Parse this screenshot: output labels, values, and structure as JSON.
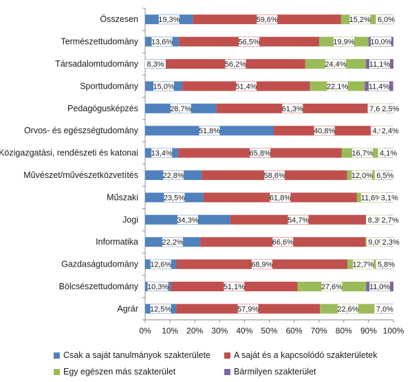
{
  "chart_data": {
    "type": "bar",
    "orientation": "horizontal",
    "stacked": "percent",
    "categories": [
      "Összesen",
      "Természettudomány",
      "Társadalomtudomány",
      "Sporttudomány",
      "Pedagógusképzés",
      "Orvos- és egészségtudomány",
      "Közigazgatási, rendészeti és katonai",
      "Művészet/művészetközvetítés",
      "Műszaki",
      "Jogi",
      "Informatika",
      "Gazdaságtudomány",
      "Bölcsészettudomány",
      "Agrár"
    ],
    "series": [
      {
        "name": "Csak a saját tanulmányok szakterülete",
        "color": "#4f81bd",
        "values": [
          19.3,
          13.6,
          8.3,
          15.0,
          28.7,
          51.8,
          13.4,
          22.8,
          23.5,
          34.3,
          22.2,
          12.6,
          10.3,
          12.5
        ],
        "labels": [
          "19,3%",
          "13,6%",
          "8,3%",
          "15,0%",
          "28,7%",
          "51,8%",
          "13,4%",
          "22,8%",
          "23,5%",
          "34,3%",
          "22,2%",
          "12,6%",
          "10,3%",
          "12,5%"
        ]
      },
      {
        "name": "A saját és a kapcsolódó szakterületek",
        "color": "#c0504d",
        "values": [
          59.6,
          56.5,
          56.2,
          51.4,
          61.3,
          40.8,
          65.8,
          58.6,
          61.8,
          54.7,
          66.6,
          68.9,
          51.1,
          57.9
        ],
        "labels": [
          "59,6%",
          "56,5%",
          "56,2%",
          "51,4%",
          "61,3%",
          "40,8%",
          "65,8%",
          "58,6%",
          "61,8%",
          "54,7%",
          "66,6%",
          "68,9%",
          "51,1%",
          "57,9%"
        ]
      },
      {
        "name": "Egy egészen más szakterület",
        "color": "#9bbb59",
        "values": [
          15.2,
          19.9,
          24.4,
          22.1,
          7.6,
          4.9,
          16.7,
          12.0,
          11.6,
          8.3,
          9.0,
          12.7,
          27.6,
          22.6
        ],
        "labels": [
          "15,2%",
          "19,9%",
          "24,4%",
          "22,1%",
          "7,6%",
          "4,9%",
          "16,7%",
          "12,0%",
          "11,6%",
          "8,3%",
          "9,0%",
          "12,7%",
          "27,6%",
          "22,6%"
        ]
      },
      {
        "name": "Bármilyen szakterület",
        "color": "#8064a2",
        "values": [
          6.0,
          10.0,
          11.1,
          11.4,
          2.5,
          2.4,
          4.1,
          6.5,
          3.1,
          2.7,
          2.3,
          5.8,
          11.0,
          7.0
        ],
        "labels": [
          "6,0%",
          "10,0%",
          "11,1%",
          "11,4%",
          "2,5%",
          "2,4%",
          "4,1%",
          "6,5%",
          "3,1%",
          "2,7%",
          "2,3%",
          "5,8%",
          "11,0%",
          "7,0%"
        ]
      }
    ],
    "xlim": [
      0,
      100
    ],
    "xticks": [
      "0%",
      "10%",
      "20%",
      "30%",
      "40%",
      "50%",
      "60%",
      "70%",
      "80%",
      "90%",
      "100%"
    ],
    "grid": false,
    "legend_position": "bottom"
  }
}
